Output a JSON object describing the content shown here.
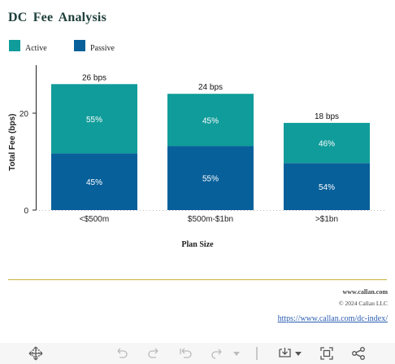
{
  "title": "DC Fee Analysis",
  "legend": [
    {
      "label": "Active",
      "color": "#109c9a"
    },
    {
      "label": "Passive",
      "color": "#08609a"
    }
  ],
  "chart_data": {
    "type": "bar",
    "stacked": true,
    "categories": [
      "<$500m",
      "$500m-$1bn",
      ">$1bn"
    ],
    "series": [
      {
        "name": "Passive",
        "color": "#08609a",
        "values": [
          11.7,
          13.2,
          9.7
        ],
        "labels": [
          "45%",
          "55%",
          "54%"
        ]
      },
      {
        "name": "Active",
        "color": "#109c9a",
        "values": [
          14.3,
          10.8,
          8.3
        ],
        "labels": [
          "55%",
          "45%",
          "46%"
        ]
      }
    ],
    "totals": [
      26,
      24,
      18
    ],
    "total_labels": [
      "26 bps",
      "24 bps",
      "18 bps"
    ],
    "ylabel": "Total Fee (bps)",
    "xlabel": "Plan Size",
    "yticks": [
      0,
      20
    ],
    "ylim": [
      0,
      29
    ]
  },
  "footer": {
    "site": "www.callan.com",
    "copyright": "© 2024 Callan LLC",
    "link": "https://www.callan.com/dc-index/"
  },
  "toolbar": {
    "icons": [
      "move-icon",
      "undo-icon",
      "redo-icon",
      "reset-icon",
      "forward-icon",
      "chevron-down-icon",
      "download-icon",
      "fullscreen-icon",
      "share-icon"
    ]
  }
}
